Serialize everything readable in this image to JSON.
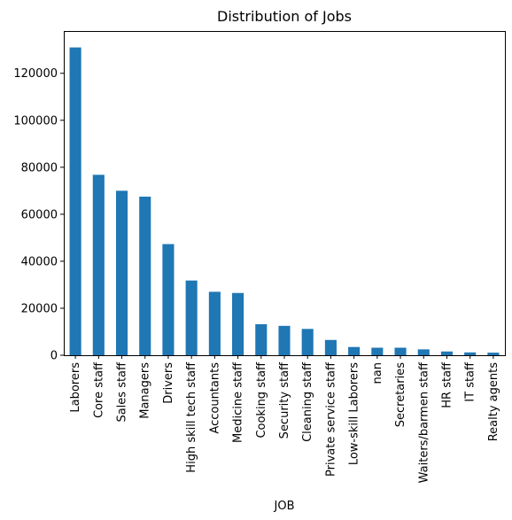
{
  "chart_data": {
    "type": "bar",
    "title": "Distribution of Jobs",
    "xlabel": "JOB",
    "ylabel": "",
    "categories": [
      "Laborers",
      "Core staff",
      "Sales staff",
      "Managers",
      "Drivers",
      "High skill tech staff",
      "Accountants",
      "Medicine staff",
      "Cooking staff",
      "Security staff",
      "Cleaning staff",
      "Private service staff",
      "Low-skill Laborers",
      "nan",
      "Secretaries",
      "Waiters/barmen staff",
      "HR staff",
      "IT staff",
      "Realty agents"
    ],
    "values": [
      131000,
      76800,
      70000,
      67500,
      47300,
      31800,
      27000,
      26500,
      13200,
      12500,
      11200,
      6500,
      3500,
      3200,
      3200,
      2500,
      1600,
      1200,
      1100
    ],
    "yticks": [
      0,
      20000,
      40000,
      60000,
      80000,
      100000,
      120000
    ],
    "ylim": [
      0,
      138000
    ],
    "bar_color": "#1f77b4",
    "grid": false,
    "legend": "none"
  }
}
